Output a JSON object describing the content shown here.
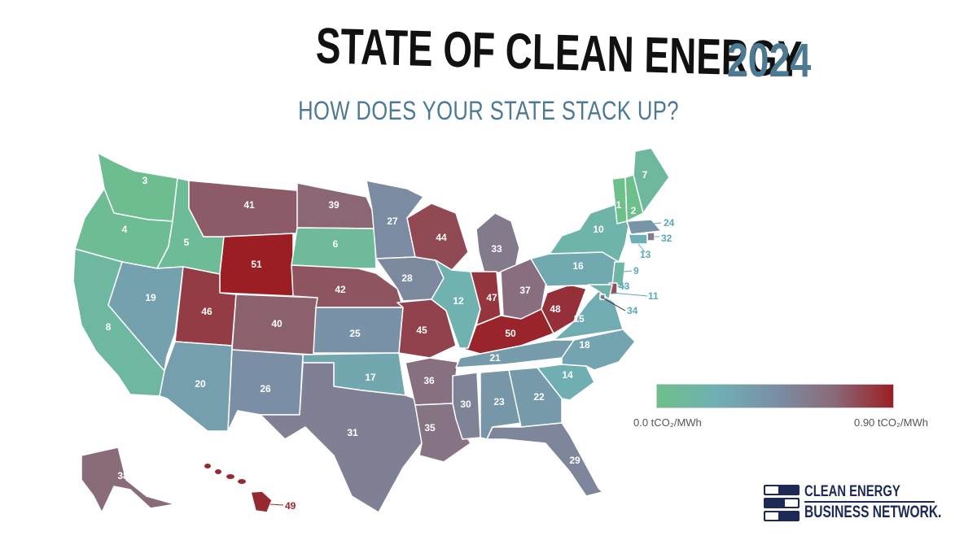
{
  "title": {
    "main": "STATE OF CLEAN ENERGY",
    "year": "2024",
    "subtitle": "HOW DOES YOUR STATE STACK UP?"
  },
  "colors": {
    "title": "#111111",
    "accent": "#4d7a93",
    "scale": [
      "#6dc089",
      "#6fb0b4",
      "#7a8fa6",
      "#8a6a78",
      "#9a1e24"
    ],
    "callout_teal": "#5aa9b6",
    "callout_red": "#a02530"
  },
  "legend": {
    "min_label": "0.0 tCO₂/MWh",
    "max_label": "0.90 tCO₂/MWh",
    "min_value": 0.0,
    "max_value": 0.9,
    "unit": "tCO₂/MWh"
  },
  "logo": {
    "line1": "CLEAN ENERGY",
    "line2": "BUSINESS NETWORK."
  },
  "states": [
    {
      "abbr": "WA",
      "rank": "3"
    },
    {
      "abbr": "OR",
      "rank": "4"
    },
    {
      "abbr": "CA",
      "rank": "8"
    },
    {
      "abbr": "ID",
      "rank": "5"
    },
    {
      "abbr": "NV",
      "rank": "19"
    },
    {
      "abbr": "MT",
      "rank": "41"
    },
    {
      "abbr": "WY",
      "rank": "51"
    },
    {
      "abbr": "UT",
      "rank": "46"
    },
    {
      "abbr": "AZ",
      "rank": "20"
    },
    {
      "abbr": "CO",
      "rank": "40"
    },
    {
      "abbr": "NM",
      "rank": "26"
    },
    {
      "abbr": "ND",
      "rank": "39"
    },
    {
      "abbr": "SD",
      "rank": "6"
    },
    {
      "abbr": "NE",
      "rank": "42"
    },
    {
      "abbr": "KS",
      "rank": "25"
    },
    {
      "abbr": "OK",
      "rank": "17"
    },
    {
      "abbr": "TX",
      "rank": "31"
    },
    {
      "abbr": "MN",
      "rank": "27"
    },
    {
      "abbr": "IA",
      "rank": "28"
    },
    {
      "abbr": "MO",
      "rank": "45"
    },
    {
      "abbr": "AR",
      "rank": "36"
    },
    {
      "abbr": "LA",
      "rank": "35"
    },
    {
      "abbr": "WI",
      "rank": "44"
    },
    {
      "abbr": "IL",
      "rank": "12"
    },
    {
      "abbr": "MI",
      "rank": "33"
    },
    {
      "abbr": "IN",
      "rank": "47"
    },
    {
      "abbr": "OH",
      "rank": "37"
    },
    {
      "abbr": "KY",
      "rank": "50"
    },
    {
      "abbr": "TN",
      "rank": "21"
    },
    {
      "abbr": "MS",
      "rank": "30"
    },
    {
      "abbr": "AL",
      "rank": "23"
    },
    {
      "abbr": "GA",
      "rank": "22"
    },
    {
      "abbr": "FL",
      "rank": "29"
    },
    {
      "abbr": "SC",
      "rank": "14"
    },
    {
      "abbr": "NC",
      "rank": "18"
    },
    {
      "abbr": "VA",
      "rank": "15"
    },
    {
      "abbr": "WV",
      "rank": "48"
    },
    {
      "abbr": "PA",
      "rank": "16"
    },
    {
      "abbr": "NY",
      "rank": "10"
    },
    {
      "abbr": "VT",
      "rank": "1"
    },
    {
      "abbr": "NH",
      "rank": "2"
    },
    {
      "abbr": "ME",
      "rank": "7"
    },
    {
      "abbr": "MA",
      "rank": "24"
    },
    {
      "abbr": "RI",
      "rank": "32"
    },
    {
      "abbr": "CT",
      "rank": "13"
    },
    {
      "abbr": "NJ",
      "rank": "9"
    },
    {
      "abbr": "DE",
      "rank": "43"
    },
    {
      "abbr": "MD",
      "rank": "11"
    },
    {
      "abbr": "DC",
      "rank": "34"
    },
    {
      "abbr": "AK",
      "rank": "38"
    },
    {
      "abbr": "HI",
      "rank": "49"
    }
  ]
}
